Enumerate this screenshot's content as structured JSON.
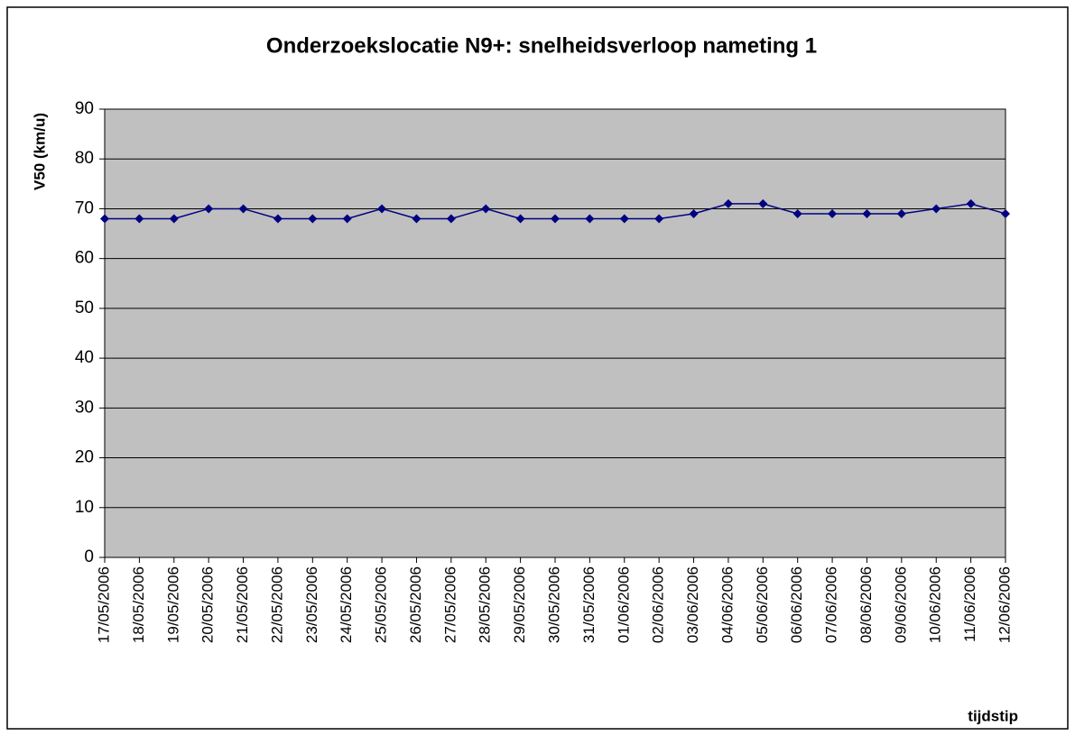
{
  "chart_data": {
    "type": "line",
    "title": "Onderzoekslocatie N9+: snelheidsverloop nameting 1",
    "y_label": "V50 (km/u)",
    "x_label": "tijdstip",
    "categories": [
      "17/05/2006",
      "18/05/2006",
      "19/05/2006",
      "20/05/2006",
      "21/05/2006",
      "22/05/2006",
      "23/05/2006",
      "24/05/2006",
      "25/05/2006",
      "26/05/2006",
      "27/05/2006",
      "28/05/2006",
      "29/05/2006",
      "30/05/2006",
      "31/05/2006",
      "01/06/2006",
      "02/06/2006",
      "03/06/2006",
      "04/06/2006",
      "05/06/2006",
      "06/06/2006",
      "07/06/2006",
      "08/06/2006",
      "09/06/2006",
      "10/06/2006",
      "11/06/2006",
      "12/06/2006"
    ],
    "values": [
      68,
      68,
      68,
      70,
      70,
      68,
      68,
      68,
      70,
      68,
      68,
      70,
      68,
      68,
      68,
      68,
      68,
      69,
      71,
      71,
      69,
      69,
      69,
      69,
      70,
      71,
      69
    ],
    "color": "#000080",
    "plot_background": "#c0c0c0",
    "ylim": [
      0,
      90
    ],
    "yticks": [
      0,
      10,
      20,
      30,
      40,
      50,
      60,
      70,
      80,
      90
    ],
    "grid": true
  }
}
